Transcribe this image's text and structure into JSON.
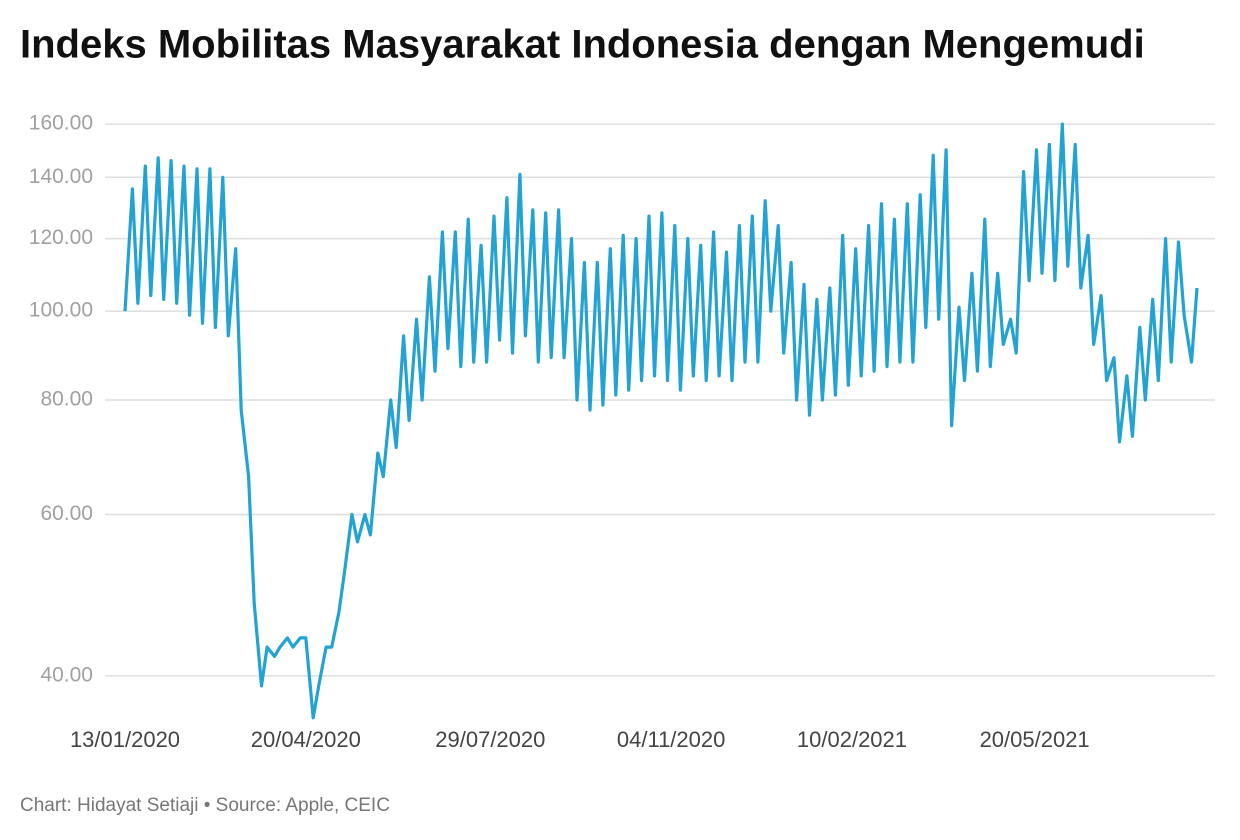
{
  "chart_data": {
    "type": "line",
    "title": "Indeks Mobilitas Masyarakat Indonesia dengan Mengemudi",
    "source": "Chart: Hidayat Setiaji • Source: Apple, CEIC",
    "log_scale": true,
    "grid": true,
    "ylim": [
      35,
      170
    ],
    "yticks": [
      {
        "value": 40,
        "label": "40.00"
      },
      {
        "value": 60,
        "label": "60.00"
      },
      {
        "value": 80,
        "label": "80.00"
      },
      {
        "value": 100,
        "label": "100.00"
      },
      {
        "value": 120,
        "label": "120.00"
      },
      {
        "value": 140,
        "label": "140.00"
      },
      {
        "value": 160,
        "label": "160.00"
      }
    ],
    "xlim": [
      "2020-01-13",
      "2021-08-16"
    ],
    "xticks": [
      {
        "value": "2020-01-13",
        "label": "13/01/2020"
      },
      {
        "value": "2020-04-20",
        "label": "20/04/2020"
      },
      {
        "value": "2020-07-29",
        "label": "29/07/2020"
      },
      {
        "value": "2020-11-04",
        "label": "04/11/2020"
      },
      {
        "value": "2021-02-10",
        "label": "10/02/2021"
      },
      {
        "value": "2021-05-20",
        "label": "20/05/2021"
      }
    ],
    "x": [
      "2020-01-13",
      "2020-01-17",
      "2020-01-20",
      "2020-01-24",
      "2020-01-27",
      "2020-01-31",
      "2020-02-03",
      "2020-02-07",
      "2020-02-10",
      "2020-02-14",
      "2020-02-17",
      "2020-02-21",
      "2020-02-24",
      "2020-02-28",
      "2020-03-02",
      "2020-03-06",
      "2020-03-09",
      "2020-03-13",
      "2020-03-16",
      "2020-03-20",
      "2020-03-23",
      "2020-03-27",
      "2020-03-30",
      "2020-04-03",
      "2020-04-06",
      "2020-04-10",
      "2020-04-13",
      "2020-04-17",
      "2020-04-20",
      "2020-04-24",
      "2020-04-27",
      "2020-05-01",
      "2020-05-04",
      "2020-05-08",
      "2020-05-11",
      "2020-05-15",
      "2020-05-18",
      "2020-05-22",
      "2020-05-25",
      "2020-05-29",
      "2020-06-01",
      "2020-06-05",
      "2020-06-08",
      "2020-06-12",
      "2020-06-15",
      "2020-06-19",
      "2020-06-22",
      "2020-06-26",
      "2020-06-29",
      "2020-07-03",
      "2020-07-06",
      "2020-07-10",
      "2020-07-13",
      "2020-07-17",
      "2020-07-20",
      "2020-07-24",
      "2020-07-27",
      "2020-07-31",
      "2020-08-03",
      "2020-08-07",
      "2020-08-10",
      "2020-08-14",
      "2020-08-17",
      "2020-08-21",
      "2020-08-24",
      "2020-08-28",
      "2020-08-31",
      "2020-09-04",
      "2020-09-07",
      "2020-09-11",
      "2020-09-14",
      "2020-09-18",
      "2020-09-21",
      "2020-09-25",
      "2020-09-28",
      "2020-10-02",
      "2020-10-05",
      "2020-10-09",
      "2020-10-12",
      "2020-10-16",
      "2020-10-19",
      "2020-10-23",
      "2020-10-26",
      "2020-10-30",
      "2020-11-02",
      "2020-11-06",
      "2020-11-09",
      "2020-11-13",
      "2020-11-16",
      "2020-11-20",
      "2020-11-23",
      "2020-11-27",
      "2020-11-30",
      "2020-12-04",
      "2020-12-07",
      "2020-12-11",
      "2020-12-14",
      "2020-12-18",
      "2020-12-21",
      "2020-12-25",
      "2020-12-28",
      "2021-01-01",
      "2021-01-04",
      "2021-01-08",
      "2021-01-11",
      "2021-01-15",
      "2021-01-18",
      "2021-01-22",
      "2021-01-25",
      "2021-01-29",
      "2021-02-01",
      "2021-02-05",
      "2021-02-08",
      "2021-02-12",
      "2021-02-15",
      "2021-02-19",
      "2021-02-22",
      "2021-02-26",
      "2021-03-01",
      "2021-03-05",
      "2021-03-08",
      "2021-03-12",
      "2021-03-15",
      "2021-03-19",
      "2021-03-22",
      "2021-03-26",
      "2021-03-29",
      "2021-04-02",
      "2021-04-05",
      "2021-04-09",
      "2021-04-12",
      "2021-04-16",
      "2021-04-19",
      "2021-04-23",
      "2021-04-26",
      "2021-04-30",
      "2021-05-03",
      "2021-05-07",
      "2021-05-10",
      "2021-05-14",
      "2021-05-17",
      "2021-05-21",
      "2021-05-24",
      "2021-05-28",
      "2021-05-31",
      "2021-06-04",
      "2021-06-07",
      "2021-06-11",
      "2021-06-14",
      "2021-06-18",
      "2021-06-21",
      "2021-06-25",
      "2021-06-28",
      "2021-07-02",
      "2021-07-05",
      "2021-07-09",
      "2021-07-12",
      "2021-07-16",
      "2021-07-19",
      "2021-07-23",
      "2021-07-26",
      "2021-07-30",
      "2021-08-02",
      "2021-08-06",
      "2021-08-09",
      "2021-08-13",
      "2021-08-16"
    ],
    "series": [
      {
        "name": "Mengemudi",
        "color": "#22a3d3",
        "values": [
          100,
          136,
          102,
          144,
          104,
          147,
          103,
          146,
          102,
          144,
          99,
          143,
          97,
          143,
          96,
          140,
          94,
          117,
          78,
          66,
          48,
          39,
          43,
          42,
          43,
          44,
          43,
          44,
          44,
          36,
          39,
          43,
          43,
          47,
          52,
          60,
          56,
          60,
          57,
          70,
          66,
          80,
          71,
          94,
          76,
          98,
          80,
          109,
          86,
          122,
          91,
          122,
          87,
          126,
          88,
          118,
          88,
          127,
          93,
          133,
          90,
          141,
          94,
          129,
          88,
          128,
          89,
          129,
          89,
          120,
          80,
          113,
          78,
          113,
          79,
          117,
          81,
          121,
          82,
          120,
          84,
          127,
          85,
          128,
          84,
          124,
          82,
          120,
          85,
          118,
          84,
          122,
          85,
          116,
          84,
          124,
          88,
          127,
          88,
          132,
          100,
          124,
          90,
          113,
          80,
          107,
          77,
          103,
          80,
          106,
          81,
          121,
          83,
          117,
          85,
          124,
          86,
          131,
          87,
          126,
          88,
          131,
          88,
          134,
          96,
          148,
          98,
          150,
          75,
          101,
          84,
          110,
          86,
          126,
          87,
          110,
          92,
          98,
          90,
          142,
          108,
          150,
          110,
          152,
          108,
          160,
          112,
          152,
          106,
          121,
          92,
          104,
          84,
          89,
          72,
          85,
          73,
          96,
          80,
          103,
          84,
          120,
          88,
          119,
          99,
          88,
          106
        ]
      }
    ]
  }
}
